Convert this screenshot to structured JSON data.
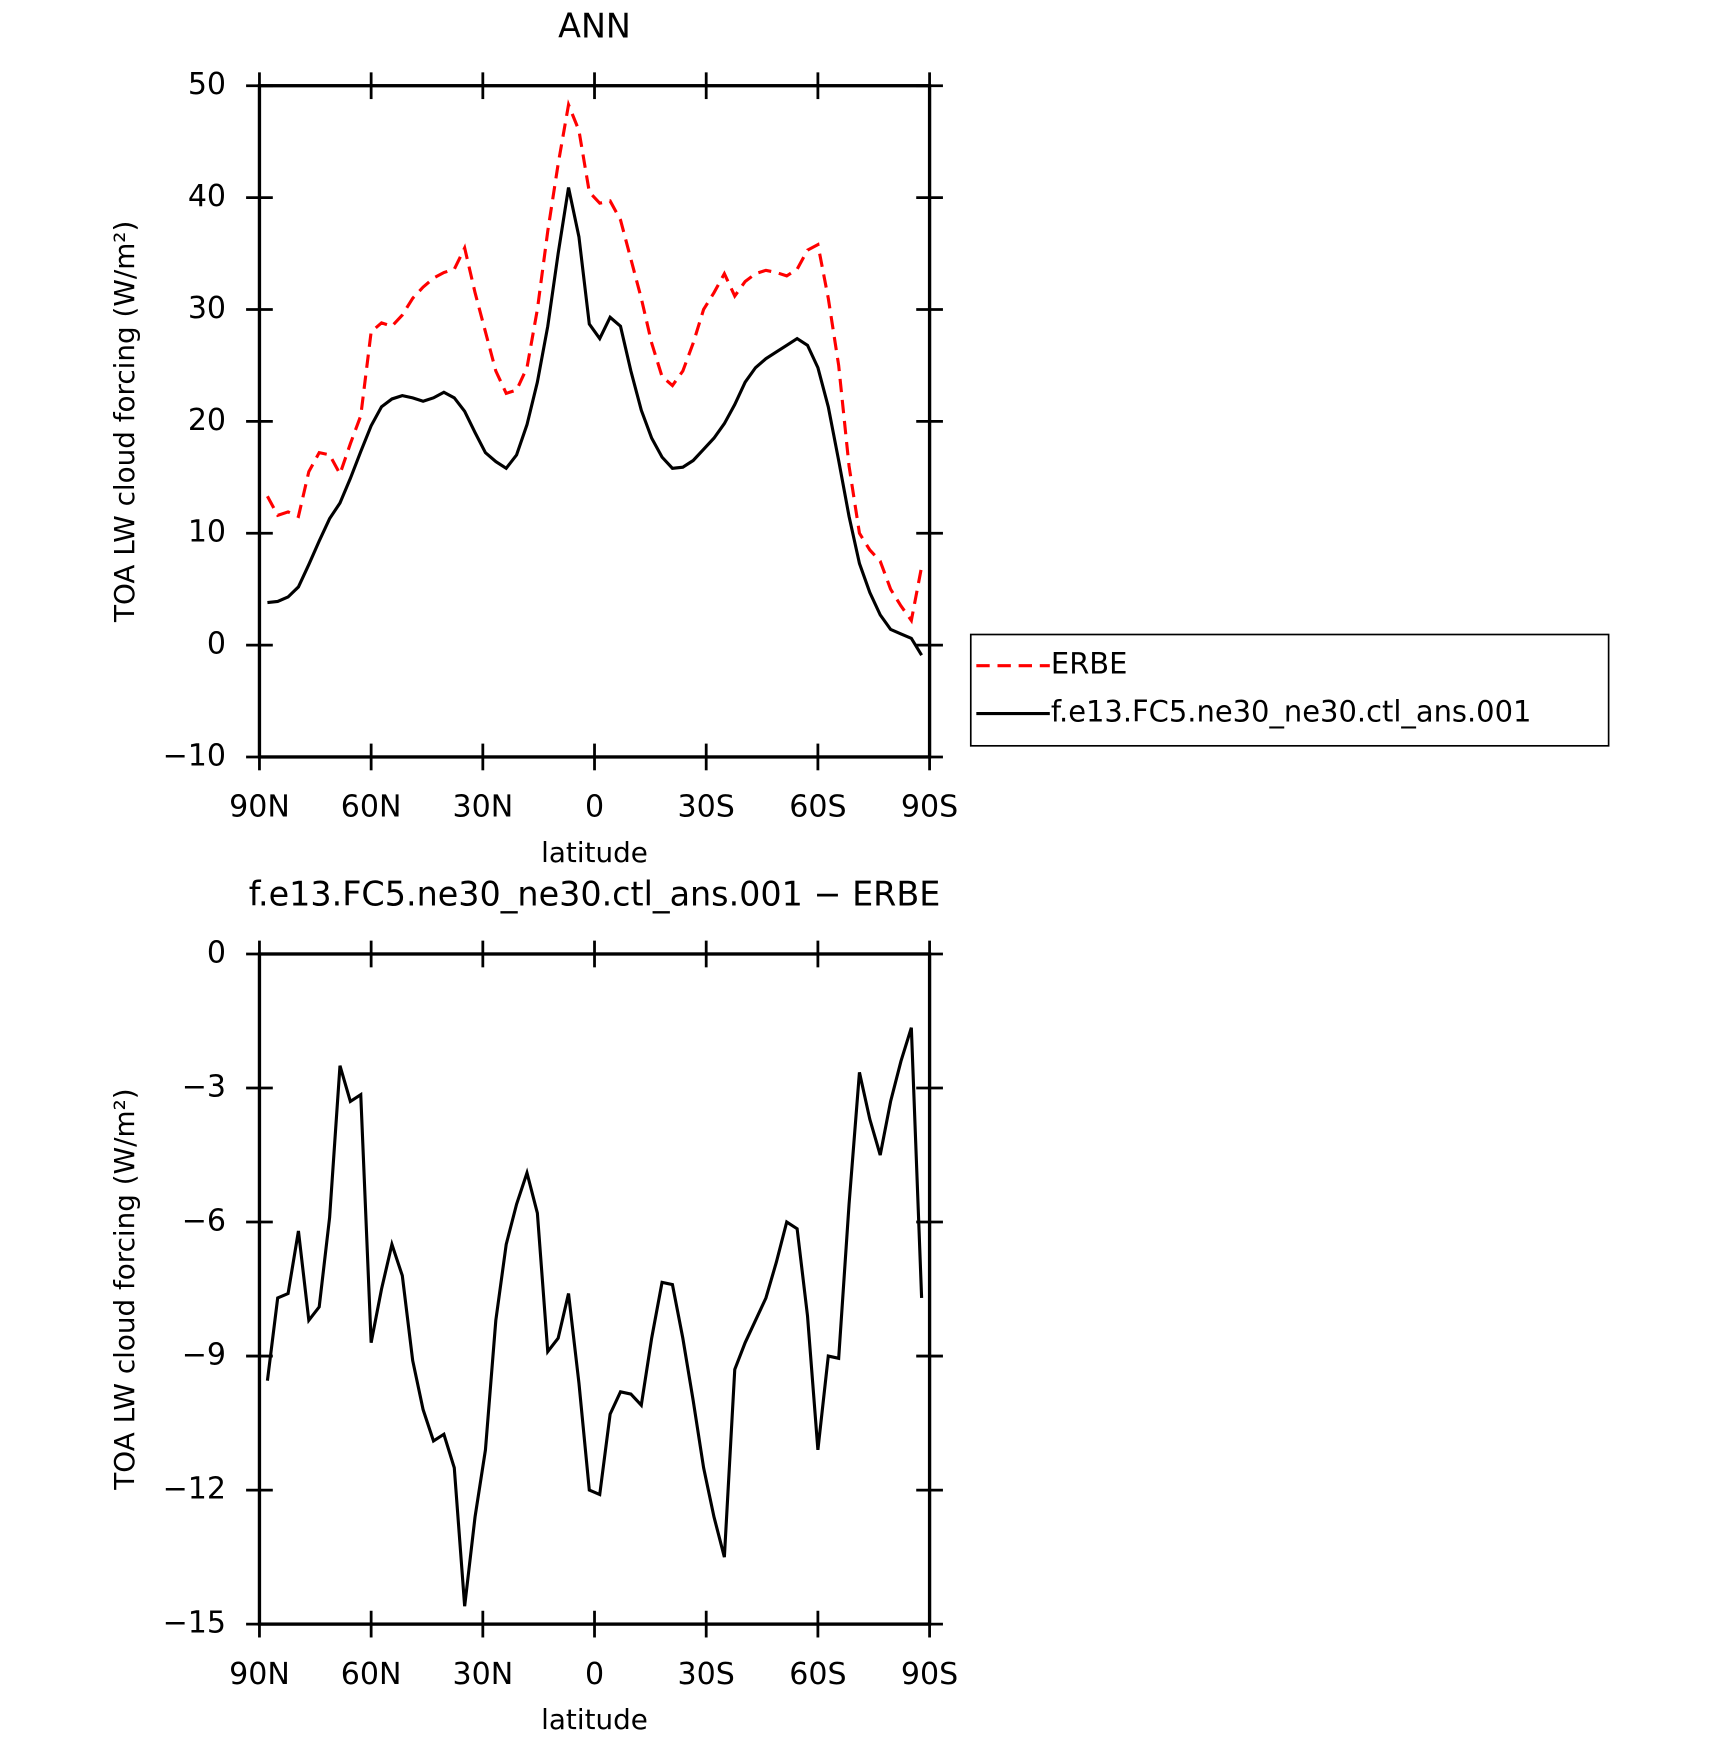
{
  "chart_data": [
    {
      "type": "line",
      "title": "ANN",
      "xlabel": "latitude",
      "ylabel": "TOA LW cloud forcing (W/m²)",
      "x": [
        87.86,
        85.1,
        82.31,
        79.53,
        76.74,
        73.95,
        71.16,
        68.37,
        65.58,
        62.79,
        60,
        57.21,
        54.42,
        51.63,
        48.84,
        46.04,
        43.25,
        40.46,
        37.67,
        34.88,
        32.09,
        29.3,
        26.51,
        23.72,
        20.93,
        18.14,
        15.35,
        12.56,
        9.77,
        6.98,
        4.19,
        1.4,
        -1.4,
        -4.19,
        -6.98,
        -9.77,
        -12.56,
        -15.35,
        -18.14,
        -20.93,
        -23.72,
        -26.51,
        -29.3,
        -32.09,
        -34.88,
        -37.67,
        -40.46,
        -43.25,
        -46.04,
        -48.84,
        -51.63,
        -54.42,
        -57.21,
        -60,
        -62.79,
        -65.58,
        -68.37,
        -71.16,
        -73.95,
        -76.74,
        -79.53,
        -82.31,
        -85.1,
        -87.86
      ],
      "series": [
        {
          "name": "ERBE",
          "color": "#ff0000",
          "style": "dashed",
          "values": [
            13.3,
            11.6,
            11.9,
            11.5,
            15.5,
            17.2,
            17.0,
            15.3,
            18.0,
            20.5,
            28.0,
            28.8,
            28.5,
            29.5,
            31.0,
            32.0,
            32.8,
            33.3,
            33.6,
            35.5,
            31.5,
            28.0,
            24.5,
            22.5,
            22.8,
            24.8,
            30.0,
            37.0,
            43.0,
            48.3,
            46.0,
            40.5,
            39.5,
            39.7,
            38.0,
            34.5,
            31.0,
            27.0,
            24.0,
            23.2,
            24.5,
            27.0,
            30.0,
            31.5,
            33.2,
            31.2,
            32.5,
            33.2,
            33.5,
            33.3,
            33.0,
            33.6,
            35.3,
            35.8,
            31.0,
            25.0,
            16.0,
            10.0,
            8.5,
            7.5,
            5.0,
            3.5,
            2.2,
            7.0
          ]
        },
        {
          "name": "f.e13.FC5.ne30_ne30.ctl_ans.001",
          "color": "#000000",
          "style": "solid",
          "values": [
            3.8,
            3.9,
            4.3,
            5.2,
            7.2,
            9.3,
            11.3,
            12.7,
            14.9,
            17.3,
            19.6,
            21.3,
            22.0,
            22.3,
            22.1,
            21.8,
            22.1,
            22.6,
            22.1,
            20.9,
            19.0,
            17.2,
            16.4,
            15.8,
            17.0,
            19.7,
            23.5,
            28.5,
            35.0,
            40.9,
            36.5,
            28.7,
            27.4,
            29.3,
            28.5,
            24.5,
            21.0,
            18.5,
            16.8,
            15.8,
            15.9,
            16.5,
            17.5,
            18.5,
            19.8,
            21.5,
            23.5,
            24.8,
            25.6,
            26.2,
            26.8,
            27.4,
            26.8,
            24.8,
            21.3,
            16.5,
            11.5,
            7.3,
            4.7,
            2.7,
            1.4,
            1.0,
            0.6,
            -0.9
          ]
        }
      ],
      "xlim": [
        90,
        -90
      ],
      "xticks": [
        {
          "value": 90,
          "label": "90N"
        },
        {
          "value": 60,
          "label": "60N"
        },
        {
          "value": 30,
          "label": "30N"
        },
        0,
        {
          "value": -30,
          "label": "30S"
        },
        {
          "value": -60,
          "label": "60S"
        },
        {
          "value": -90,
          "label": "90S"
        }
      ],
      "ylim": [
        -10,
        50
      ],
      "yticks": [
        {
          "value": -10,
          "label": "−10"
        },
        0,
        10,
        20,
        30,
        40,
        50
      ],
      "legend": "outside-right"
    },
    {
      "type": "line",
      "title": "f.e13.FC5.ne30_ne30.ctl_ans.001 − ERBE",
      "xlabel": "latitude",
      "ylabel": "TOA LW cloud forcing (W/m²)",
      "x": [
        87.86,
        85.1,
        82.31,
        79.53,
        76.74,
        73.95,
        71.16,
        68.37,
        65.58,
        62.79,
        60,
        57.21,
        54.42,
        51.63,
        48.84,
        46.04,
        43.25,
        40.46,
        37.67,
        34.88,
        32.09,
        29.3,
        26.51,
        23.72,
        20.93,
        18.14,
        15.35,
        12.56,
        9.77,
        6.98,
        4.19,
        1.4,
        -1.4,
        -4.19,
        -6.98,
        -9.77,
        -12.56,
        -15.35,
        -18.14,
        -20.93,
        -23.72,
        -26.51,
        -29.3,
        -32.09,
        -34.88,
        -37.67,
        -40.46,
        -43.25,
        -46.04,
        -48.84,
        -51.63,
        -54.42,
        -57.21,
        -60,
        -62.79,
        -65.58,
        -68.37,
        -71.16,
        -73.95,
        -76.74,
        -79.53,
        -82.31,
        -85.1,
        -87.86
      ],
      "series": [
        {
          "color": "#000000",
          "style": "solid",
          "values": [
            -9.55,
            -7.7,
            -7.6,
            -6.2,
            -8.2,
            -7.9,
            -5.9,
            -2.5,
            -3.3,
            -3.15,
            -8.7,
            -7.5,
            -6.5,
            -7.2,
            -9.1,
            -10.2,
            -10.9,
            -10.75,
            -11.5,
            -14.6,
            -12.6,
            -11.1,
            -8.2,
            -6.5,
            -5.6,
            -4.9,
            -5.8,
            -8.9,
            -8.6,
            -7.6,
            -9.6,
            -12.0,
            -12.1,
            -10.3,
            -9.8,
            -9.85,
            -10.1,
            -8.6,
            -7.35,
            -7.4,
            -8.6,
            -10.0,
            -11.5,
            -12.6,
            -13.5,
            -9.3,
            -8.7,
            -8.2,
            -7.7,
            -6.9,
            -6.0,
            -6.15,
            -8.1,
            -11.1,
            -9.0,
            -9.05,
            -5.6,
            -2.65,
            -3.7,
            -4.5,
            -3.3,
            -2.4,
            -1.65,
            -7.7
          ]
        }
      ],
      "xlim": [
        90,
        -90
      ],
      "xticks": [
        {
          "value": 90,
          "label": "90N"
        },
        {
          "value": 60,
          "label": "60N"
        },
        {
          "value": 30,
          "label": "30N"
        },
        0,
        {
          "value": -30,
          "label": "30S"
        },
        {
          "value": -60,
          "label": "60S"
        },
        {
          "value": -90,
          "label": "90S"
        }
      ],
      "ylim": [
        -15,
        0
      ],
      "yticks": [
        {
          "value": -15,
          "label": "−15"
        },
        {
          "value": -12,
          "label": "−12"
        },
        {
          "value": -9,
          "label": "−9"
        },
        {
          "value": -6,
          "label": "−6"
        },
        {
          "value": -3,
          "label": "−3"
        },
        0
      ]
    }
  ]
}
